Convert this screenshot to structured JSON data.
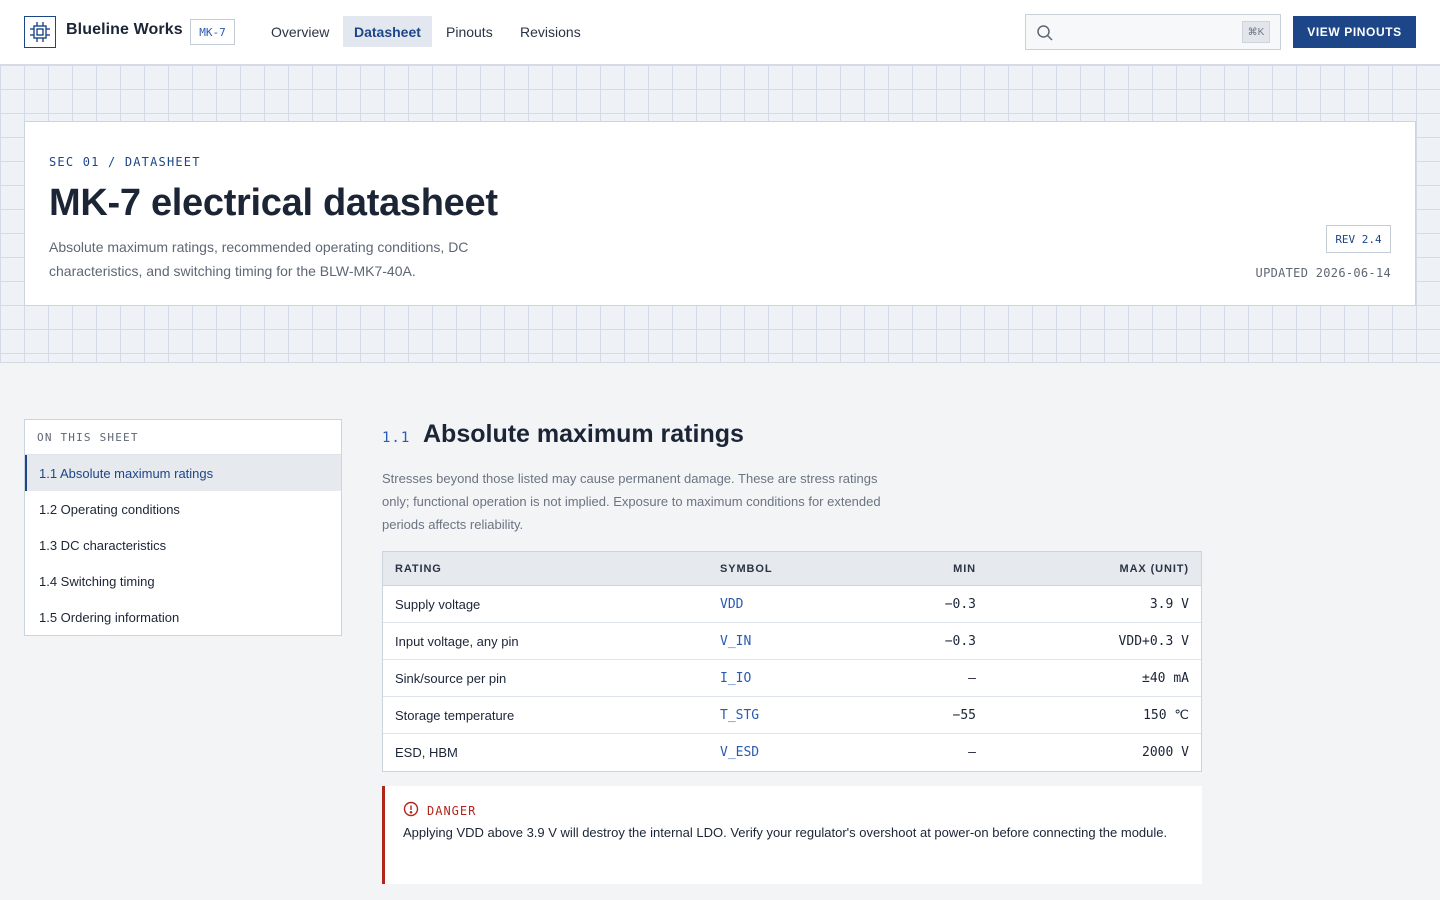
{
  "brand": {
    "name": "Blueline Works",
    "badge": "MK-7"
  },
  "nav": {
    "items": [
      {
        "label": "Overview"
      },
      {
        "label": "Datasheet"
      },
      {
        "label": "Pinouts"
      },
      {
        "label": "Revisions"
      }
    ],
    "active": "Datasheet"
  },
  "search": {
    "placeholder": "",
    "shortcut": "⌘K"
  },
  "header": {
    "cta_label": "VIEW PINOUTS"
  },
  "hero": {
    "eyebrow": "SEC 01 / DATASHEET",
    "title": "MK-7 electrical datasheet",
    "subtitle": "Absolute maximum ratings, recommended operating conditions, DC characteristics, and switching timing for the BLW-MK7-40A.",
    "revision": "REV 2.4",
    "updated": "UPDATED 2026-06-14"
  },
  "toc": {
    "heading": "ON THIS SHEET",
    "items": [
      {
        "label": "1.1 Absolute maximum ratings"
      },
      {
        "label": "1.2 Operating conditions"
      },
      {
        "label": "1.3 DC characteristics"
      },
      {
        "label": "1.4 Switching timing"
      },
      {
        "label": "1.5 Ordering information"
      }
    ]
  },
  "section": {
    "number": "1.1",
    "title": "Absolute maximum ratings",
    "description": "Stresses beyond those listed may cause permanent damage. These are stress ratings only; functional operation is not implied. Exposure to maximum conditions for extended periods affects reliability."
  },
  "table": {
    "headers": [
      "RATING",
      "SYMBOL",
      "MIN",
      "MAX (UNIT)"
    ],
    "rows": [
      [
        "Supply voltage",
        "VDD",
        "−0.3",
        "3.9 V"
      ],
      [
        "Input voltage, any pin",
        "V_IN",
        "−0.3",
        "VDD+0.3 V"
      ],
      [
        "Sink/source per pin",
        "I_IO",
        "—",
        "±40 mA"
      ],
      [
        "Storage temperature",
        "T_STG",
        "−55",
        "150 ℃"
      ],
      [
        "ESD, HBM",
        "V_ESD",
        "—",
        "2000 V"
      ]
    ]
  },
  "callout": {
    "label": "DANGER",
    "text": "Applying VDD above 3.9 V will destroy the internal LDO. Verify your regulator's overshoot at power-on before connecting the module."
  },
  "colors": {
    "accent": "#1d4688",
    "link": "#2a5bb0",
    "danger": "#b3261e",
    "surface": "#f3f4f6"
  }
}
